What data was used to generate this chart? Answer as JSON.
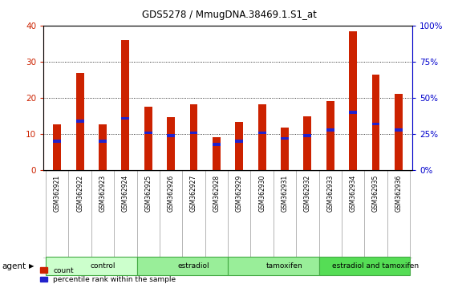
{
  "title": "GDS5278 / MmugDNA.38469.1.S1_at",
  "samples": [
    "GSM362921",
    "GSM362922",
    "GSM362923",
    "GSM362924",
    "GSM362925",
    "GSM362926",
    "GSM362927",
    "GSM362928",
    "GSM362929",
    "GSM362930",
    "GSM362931",
    "GSM362932",
    "GSM362933",
    "GSM362934",
    "GSM362935",
    "GSM362936"
  ],
  "counts": [
    12.8,
    27.0,
    12.8,
    36.0,
    17.5,
    14.8,
    18.2,
    9.2,
    13.4,
    18.2,
    11.8,
    15.0,
    19.2,
    38.5,
    26.5,
    21.2
  ],
  "percentile_ranks": [
    20.0,
    34.0,
    20.0,
    36.0,
    26.0,
    24.0,
    26.0,
    18.0,
    20.0,
    26.0,
    22.0,
    24.0,
    28.0,
    40.0,
    32.0,
    28.0
  ],
  "bar_color": "#cc2200",
  "pct_color": "#2222cc",
  "bar_width": 0.35,
  "ylim_left": [
    0,
    40
  ],
  "ylim_right": [
    0,
    100
  ],
  "yticks_left": [
    0,
    10,
    20,
    30,
    40
  ],
  "yticks_right": [
    0,
    25,
    50,
    75,
    100
  ],
  "groups": [
    {
      "label": "control",
      "start": 0,
      "end": 4
    },
    {
      "label": "estradiol",
      "start": 4,
      "end": 8
    },
    {
      "label": "tamoxifen",
      "start": 8,
      "end": 12
    },
    {
      "label": "estradiol and tamoxifen",
      "start": 12,
      "end": 16
    }
  ],
  "group_colors": [
    "#ccffcc",
    "#99ee99",
    "#99ee99",
    "#55dd55"
  ],
  "agent_label": "agent",
  "legend_count": "count",
  "legend_pct": "percentile rank within the sample",
  "background_color": "#ffffff",
  "plot_bg_color": "#ffffff",
  "grid_color": "#000000",
  "tick_label_color_left": "#cc2200",
  "tick_label_color_right": "#0000cc",
  "sample_bg_color": "#cccccc",
  "sample_border_color": "#999999"
}
